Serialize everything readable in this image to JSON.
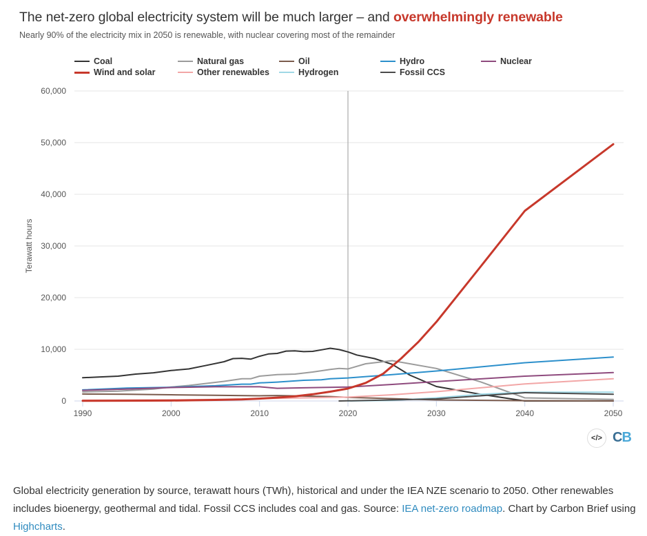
{
  "header": {
    "title_plain": "The net-zero global electricity system will be much larger – and ",
    "title_highlight": "overwhelmingly renewable",
    "subtitle": "Nearly 90% of the electricity mix in 2050 is renewable, with nuclear covering most of the remainder"
  },
  "colors": {
    "highlight": "#c7382b",
    "link": "#2f8bbf",
    "divider_line": "#aaaaaa"
  },
  "chart_data": {
    "type": "line",
    "title": "The net-zero global electricity system will be much larger – and overwhelmingly renewable",
    "subtitle": "Nearly 90% of the electricity mix in 2050 is renewable, with nuclear covering most of the remainder",
    "xlabel": "",
    "ylabel": "Terawatt hours",
    "xlim": [
      1990,
      2050
    ],
    "ylim": [
      0,
      60000
    ],
    "x_ticks": [
      1990,
      2000,
      2010,
      2020,
      2030,
      2040,
      2050
    ],
    "x_tick_labels": [
      "1990",
      "2000",
      "2010",
      "2020",
      "2030",
      "2040",
      "2050"
    ],
    "y_ticks": [
      0,
      10000,
      20000,
      30000,
      40000,
      50000,
      60000
    ],
    "y_tick_labels": [
      "0",
      "10,000",
      "20,000",
      "30,000",
      "40,000",
      "50,000",
      "60,000"
    ],
    "grid": "horizontal",
    "legend_position": "top",
    "vertical_marker": {
      "x": 2020
    },
    "series": [
      {
        "name": "Coal",
        "color": "#333333",
        "width": 2,
        "points": [
          [
            1990,
            4500
          ],
          [
            1992,
            4650
          ],
          [
            1994,
            4800
          ],
          [
            1996,
            5200
          ],
          [
            1998,
            5450
          ],
          [
            2000,
            5900
          ],
          [
            2002,
            6200
          ],
          [
            2004,
            6900
          ],
          [
            2006,
            7600
          ],
          [
            2007,
            8200
          ],
          [
            2008,
            8250
          ],
          [
            2009,
            8100
          ],
          [
            2010,
            8650
          ],
          [
            2011,
            9100
          ],
          [
            2012,
            9200
          ],
          [
            2013,
            9650
          ],
          [
            2014,
            9700
          ],
          [
            2015,
            9550
          ],
          [
            2016,
            9600
          ],
          [
            2017,
            9900
          ],
          [
            2018,
            10200
          ],
          [
            2019,
            9950
          ],
          [
            2020,
            9500
          ],
          [
            2021,
            8900
          ],
          [
            2023,
            8200
          ],
          [
            2025,
            7100
          ],
          [
            2027,
            5000
          ],
          [
            2030,
            2800
          ],
          [
            2035,
            1300
          ],
          [
            2040,
            0
          ],
          [
            2050,
            0
          ]
        ]
      },
      {
        "name": "Natural gas",
        "color": "#9b9b9b",
        "width": 2,
        "points": [
          [
            1990,
            1750
          ],
          [
            1994,
            1900
          ],
          [
            1998,
            2300
          ],
          [
            2000,
            2700
          ],
          [
            2002,
            3000
          ],
          [
            2004,
            3400
          ],
          [
            2006,
            3800
          ],
          [
            2008,
            4300
          ],
          [
            2009,
            4300
          ],
          [
            2010,
            4800
          ],
          [
            2012,
            5100
          ],
          [
            2014,
            5200
          ],
          [
            2016,
            5600
          ],
          [
            2018,
            6100
          ],
          [
            2019,
            6300
          ],
          [
            2020,
            6200
          ],
          [
            2022,
            7200
          ],
          [
            2025,
            7800
          ],
          [
            2030,
            6300
          ],
          [
            2035,
            3700
          ],
          [
            2040,
            600
          ],
          [
            2050,
            300
          ]
        ]
      },
      {
        "name": "Oil",
        "color": "#7a5a4c",
        "width": 2,
        "points": [
          [
            1990,
            1350
          ],
          [
            1995,
            1300
          ],
          [
            2000,
            1200
          ],
          [
            2005,
            1100
          ],
          [
            2010,
            1000
          ],
          [
            2012,
            1050
          ],
          [
            2015,
            950
          ],
          [
            2018,
            850
          ],
          [
            2020,
            700
          ],
          [
            2025,
            450
          ],
          [
            2030,
            200
          ],
          [
            2040,
            50
          ],
          [
            2050,
            20
          ]
        ]
      },
      {
        "name": "Hydro",
        "color": "#2b8fcb",
        "width": 2,
        "points": [
          [
            1990,
            2150
          ],
          [
            1995,
            2500
          ],
          [
            2000,
            2650
          ],
          [
            2005,
            2950
          ],
          [
            2008,
            3250
          ],
          [
            2009,
            3250
          ],
          [
            2010,
            3500
          ],
          [
            2012,
            3650
          ],
          [
            2015,
            4000
          ],
          [
            2017,
            4100
          ],
          [
            2018,
            4300
          ],
          [
            2020,
            4450
          ],
          [
            2025,
            5100
          ],
          [
            2030,
            5800
          ],
          [
            2040,
            7400
          ],
          [
            2050,
            8500
          ]
        ]
      },
      {
        "name": "Nuclear",
        "color": "#8e4a7d",
        "width": 2,
        "points": [
          [
            1990,
            2050
          ],
          [
            1995,
            2300
          ],
          [
            2000,
            2600
          ],
          [
            2005,
            2750
          ],
          [
            2010,
            2750
          ],
          [
            2012,
            2450
          ],
          [
            2015,
            2550
          ],
          [
            2020,
            2700
          ],
          [
            2025,
            3200
          ],
          [
            2030,
            3750
          ],
          [
            2040,
            4800
          ],
          [
            2050,
            5500
          ]
        ]
      },
      {
        "name": "Wind and solar",
        "color": "#c7382b",
        "width": 3,
        "points": [
          [
            1990,
            40
          ],
          [
            1995,
            50
          ],
          [
            2000,
            80
          ],
          [
            2005,
            200
          ],
          [
            2008,
            300
          ],
          [
            2010,
            450
          ],
          [
            2012,
            650
          ],
          [
            2014,
            900
          ],
          [
            2016,
            1300
          ],
          [
            2018,
            1800
          ],
          [
            2020,
            2400
          ],
          [
            2022,
            3500
          ],
          [
            2024,
            5300
          ],
          [
            2026,
            8200
          ],
          [
            2028,
            11500
          ],
          [
            2030,
            15300
          ],
          [
            2035,
            26000
          ],
          [
            2040,
            36800
          ],
          [
            2050,
            49700
          ]
        ]
      },
      {
        "name": "Other renewables",
        "color": "#f2a6a6",
        "width": 2,
        "points": [
          [
            1990,
            150
          ],
          [
            1995,
            180
          ],
          [
            2000,
            220
          ],
          [
            2005,
            300
          ],
          [
            2010,
            450
          ],
          [
            2015,
            600
          ],
          [
            2020,
            750
          ],
          [
            2025,
            1200
          ],
          [
            2030,
            1800
          ],
          [
            2040,
            3300
          ],
          [
            2050,
            4300
          ]
        ]
      },
      {
        "name": "Hydrogen",
        "color": "#9fd8e6",
        "width": 2,
        "points": [
          [
            2020,
            0
          ],
          [
            2025,
            100
          ],
          [
            2030,
            600
          ],
          [
            2035,
            1300
          ],
          [
            2040,
            1700
          ],
          [
            2050,
            1700
          ]
        ]
      },
      {
        "name": "Fossil CCS",
        "color": "#4a4a4a",
        "width": 2,
        "points": [
          [
            2019,
            0
          ],
          [
            2025,
            200
          ],
          [
            2030,
            400
          ],
          [
            2035,
            1000
          ],
          [
            2040,
            1600
          ],
          [
            2050,
            1300
          ]
        ]
      }
    ]
  },
  "legend": {
    "items": [
      {
        "label": "Coal",
        "color": "#333333"
      },
      {
        "label": "Natural gas",
        "color": "#9b9b9b"
      },
      {
        "label": "Oil",
        "color": "#7a5a4c"
      },
      {
        "label": "Hydro",
        "color": "#2b8fcb"
      },
      {
        "label": "Nuclear",
        "color": "#8e4a7d"
      },
      {
        "label": "Wind and solar",
        "color": "#c7382b"
      },
      {
        "label": "Other renewables",
        "color": "#f2a6a6"
      },
      {
        "label": "Hydrogen",
        "color": "#9fd8e6"
      },
      {
        "label": "Fossil CCS",
        "color": "#4a4a4a"
      }
    ]
  },
  "footer": {
    "embed_icon": "</>",
    "logo_c": "C",
    "logo_b": "B",
    "caption_part1": "Global electricity generation by source, terawatt hours (TWh), historical and under the IEA NZE scenario to 2050. Other renewables includes bioenergy, geothermal and tidal. Fossil CCS includes coal and gas. Source: ",
    "caption_link1": "IEA net-zero roadmap",
    "caption_part2": ". Chart by Carbon Brief using ",
    "caption_link2": "Highcharts",
    "caption_part3": "."
  }
}
